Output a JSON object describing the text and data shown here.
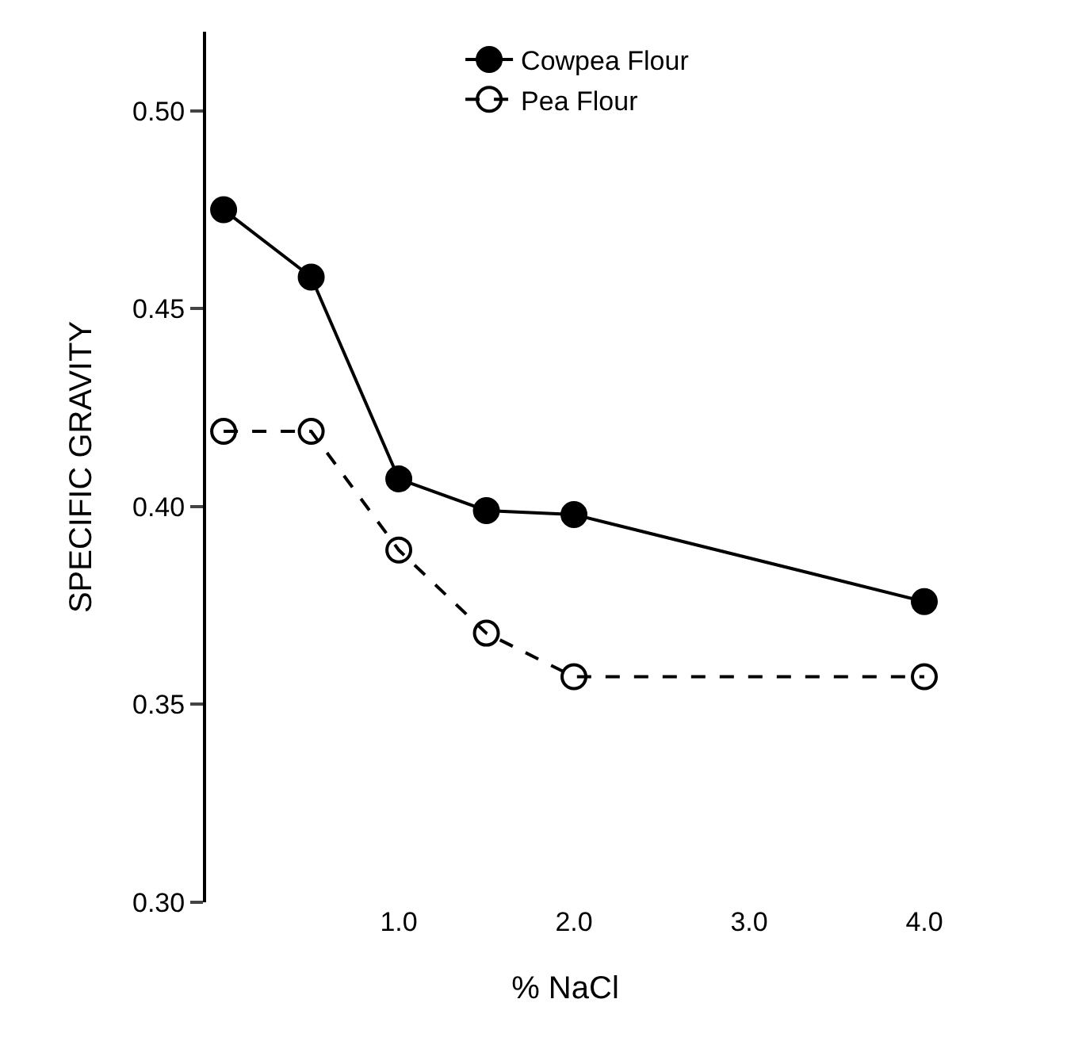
{
  "chart_data": {
    "type": "line",
    "xlabel": "% NaCl",
    "ylabel": "SPECIFIC GRAVITY",
    "x": [
      0,
      0.5,
      1.0,
      1.5,
      2.0,
      4.0
    ],
    "series": [
      {
        "name": "Cowpea Flour",
        "color": "#000000",
        "values": [
          0.475,
          0.458,
          0.407,
          0.399,
          0.398,
          0.376
        ],
        "line_style": "solid"
      },
      {
        "name": "Pea Flour",
        "color": "#000000",
        "values": [
          0.419,
          0.419,
          0.389,
          0.368,
          0.357,
          0.357
        ],
        "line_style": "dashed"
      }
    ],
    "xlim": [
      -0.1,
      4.0
    ],
    "xticks": [
      {
        "value": 1.0,
        "label": "1.0"
      },
      {
        "value": 2.0,
        "label": "2.0"
      },
      {
        "value": 3.0,
        "label": "3.0"
      },
      {
        "value": 4.0,
        "label": "4.0"
      }
    ],
    "ylim": [
      0.3,
      0.52
    ],
    "yticks": [
      {
        "value": 0.3,
        "label": "0.30"
      },
      {
        "value": 0.35,
        "label": "0.35"
      },
      {
        "value": 0.4,
        "label": "0.40"
      },
      {
        "value": 0.45,
        "label": "0.45"
      },
      {
        "value": 0.5,
        "label": "0.50"
      }
    ],
    "legend": "top right",
    "marker": "circle"
  }
}
